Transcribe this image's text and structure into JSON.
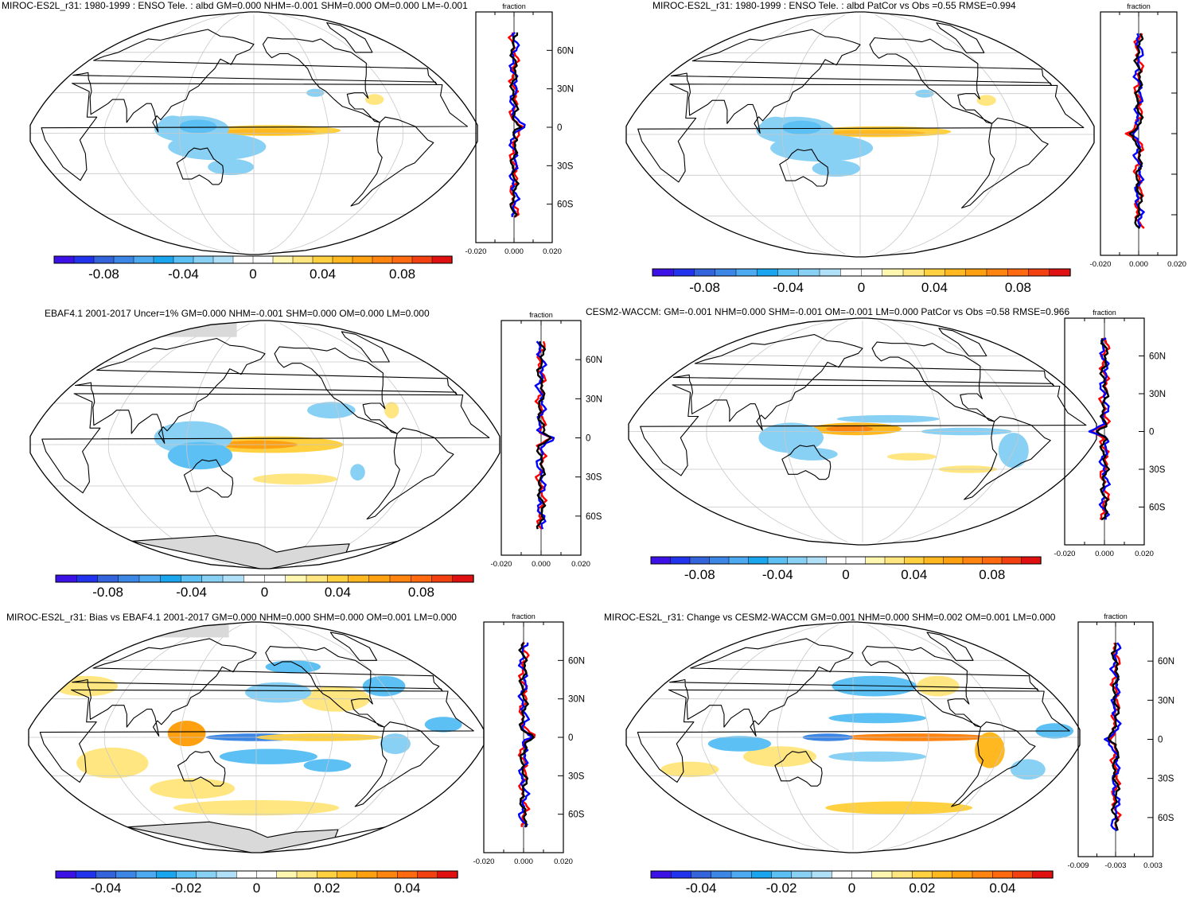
{
  "panels": [
    {
      "title": "MIROC-ES2L_r31: 1980-1999 : ENSO Tele. : albd GM=0.000 NHM=-0.001 SHM=0.000 OM=0.000 LM=-0.001",
      "profile_title": "fraction",
      "lat_labels": [
        "60N",
        "30N",
        "0",
        "30S",
        "60S"
      ],
      "profile_ticks": [
        "-0.020",
        "0.000",
        "0.020"
      ],
      "colorbar_ticks": [
        "-0.08",
        "-0.04",
        "0",
        "0.04",
        "0.08"
      ],
      "colorbar_palette": "blue-red-20",
      "pattern": "miroc_enso",
      "antarctica_gray": false
    },
    {
      "title": "MIROC-ES2L_r31: 1980-1999 : ENSO Tele. : albd PatCor vs Obs =0.55 RMSE=0.994",
      "profile_title": "fraction",
      "lat_labels": [
        "",
        "",
        "",
        "",
        ""
      ],
      "profile_ticks": [
        "-0.020",
        "0.000",
        "0.020"
      ],
      "colorbar_ticks": [
        "-0.08",
        "-0.04",
        "0",
        "0.04",
        "0.08"
      ],
      "colorbar_palette": "blue-red-20",
      "pattern": "miroc_enso",
      "antarctica_gray": false
    },
    {
      "title": "EBAF4.1 2001-2017 Uncer=1% GM=0.000 NHM=-0.001 SHM=0.000 OM=0.000 LM=0.000",
      "profile_title": "fraction",
      "lat_labels": [
        "60N",
        "30N",
        "0",
        "30S",
        "60S"
      ],
      "profile_ticks": [
        "-0.020",
        "0.000",
        "0.020"
      ],
      "colorbar_ticks": [
        "-0.08",
        "-0.04",
        "0",
        "0.04",
        "0.08"
      ],
      "colorbar_palette": "blue-red-20",
      "pattern": "ebaf",
      "antarctica_gray": true
    },
    {
      "title": "CESM2-WACCM: GM=-0.001 NHM=0.000 SHM=-0.001 OM=-0.001 LM=0.000 PatCor vs Obs =0.58 RMSE=0.966",
      "profile_title": "fraction",
      "lat_labels": [
        "60N",
        "30N",
        "0",
        "30S",
        "60S"
      ],
      "profile_ticks": [
        "-0.020",
        "0.000",
        "0.020"
      ],
      "colorbar_ticks": [
        "-0.08",
        "-0.04",
        "0",
        "0.04",
        "0.08"
      ],
      "colorbar_palette": "blue-red-20",
      "pattern": "cesm",
      "antarctica_gray": false
    },
    {
      "title": "MIROC-ES2L_r31: Bias vs EBAF4.1 2001-2017 GM=0.000 NHM=0.000 SHM=0.000 OM=0.001 LM=0.000",
      "profile_title": "fraction",
      "lat_labels": [
        "60N",
        "30N",
        "0",
        "30S",
        "60S"
      ],
      "profile_ticks": [
        "-0.020",
        "0.000",
        "0.020"
      ],
      "colorbar_ticks": [
        "-0.04",
        "-0.02",
        "0",
        "0.02",
        "0.04"
      ],
      "colorbar_palette": "blue-red-20",
      "pattern": "bias",
      "antarctica_gray": true
    },
    {
      "title": "MIROC-ES2L_r31: Change vs CESM2-WACCM GM=0.001 NHM=0.000 SHM=0.002 OM=0.001 LM=0.000",
      "profile_title": "fraction",
      "lat_labels": [
        "60N",
        "30N",
        "0",
        "30S",
        "60S"
      ],
      "profile_ticks": [
        "-0.009",
        "-0.003",
        "0.003"
      ],
      "colorbar_ticks": [
        "-0.04",
        "-0.02",
        "0",
        "0.02",
        "0.04"
      ],
      "colorbar_palette": "blue-red-20",
      "pattern": "change",
      "antarctica_gray": false
    }
  ],
  "chart_data": {
    "type": "heatmap",
    "projection": "robinson",
    "central_longitude": 180,
    "variable": "albd",
    "profile_series_colors": {
      "obs": "#ff0000",
      "model": "#0000ff",
      "reference": "#000000"
    },
    "colorbar_colors": [
      "#3c11e6",
      "#2233ee",
      "#3464dc",
      "#3c86e6",
      "#4eaaf0",
      "#1aa6ee",
      "#5cc0f4",
      "#88d0f4",
      "#b0e0f8",
      "#ffffff",
      "#ffffff",
      "#fff7b0",
      "#ffe680",
      "#ffd040",
      "#ffb820",
      "#ffa010",
      "#ff8410",
      "#ff6a10",
      "#f24010",
      "#e01010"
    ],
    "lat_ticks": [
      60,
      30,
      0,
      -30,
      -60
    ]
  }
}
